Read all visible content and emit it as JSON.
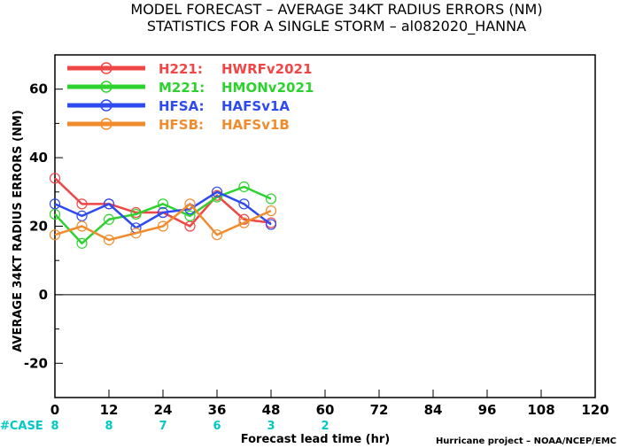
{
  "chart_data": {
    "type": "line",
    "title": "MODEL FORECAST – AVERAGE 34KT RADIUS ERRORS (NM)",
    "subtitle": "STATISTICS FOR A SINGLE STORM – al082020_HANNA",
    "xlabel": "Forecast lead time (hr)",
    "ylabel": "AVERAGE 34KT RADIUS ERRORS (NM)",
    "xlim": [
      0,
      120
    ],
    "ylim": [
      -30,
      70
    ],
    "xticks": [
      "0",
      "12",
      "24",
      "36",
      "48",
      "60",
      "72",
      "84",
      "96",
      "108",
      "120"
    ],
    "yticks": [
      "-20",
      "0",
      "20",
      "40",
      "60"
    ],
    "zero_line": true,
    "legend_position": "top-left",
    "series": [
      {
        "name": "H221",
        "label": "HWRFv2021",
        "color": "#f04646",
        "x": [
          0,
          6,
          12,
          18,
          24,
          30,
          36,
          42,
          48
        ],
        "y": [
          34,
          26.5,
          26.5,
          24,
          24,
          20,
          29,
          22,
          21
        ]
      },
      {
        "name": "M221",
        "label": "HMONv2021",
        "color": "#2ed22e",
        "x": [
          0,
          6,
          12,
          18,
          24,
          30,
          36,
          42,
          48
        ],
        "y": [
          23.5,
          15,
          22,
          23.5,
          26.5,
          23,
          28.5,
          31.5,
          28
        ]
      },
      {
        "name": "HFSA",
        "label": "HAFSv1A",
        "color": "#2e4bf0",
        "x": [
          0,
          6,
          12,
          18,
          24,
          30,
          36,
          42,
          48
        ],
        "y": [
          26.5,
          23,
          26.5,
          19.5,
          24,
          25,
          30,
          26.5,
          20.5
        ]
      },
      {
        "name": "HFSB",
        "label": "HAFSv1B",
        "color": "#f08c2e",
        "x": [
          0,
          6,
          12,
          18,
          24,
          30,
          36,
          42,
          48
        ],
        "y": [
          17.5,
          20,
          16,
          18,
          20,
          26.5,
          17.5,
          21,
          24.5
        ]
      }
    ],
    "case_label": "#CASE",
    "cases": [
      {
        "x": 0,
        "n": "8"
      },
      {
        "x": 12,
        "n": "8"
      },
      {
        "x": 24,
        "n": "7"
      },
      {
        "x": 36,
        "n": "6"
      },
      {
        "x": 48,
        "n": "3"
      },
      {
        "x": 60,
        "n": "2"
      }
    ]
  },
  "credit": "Hurricane project – NOAA/NCEP/EMC"
}
